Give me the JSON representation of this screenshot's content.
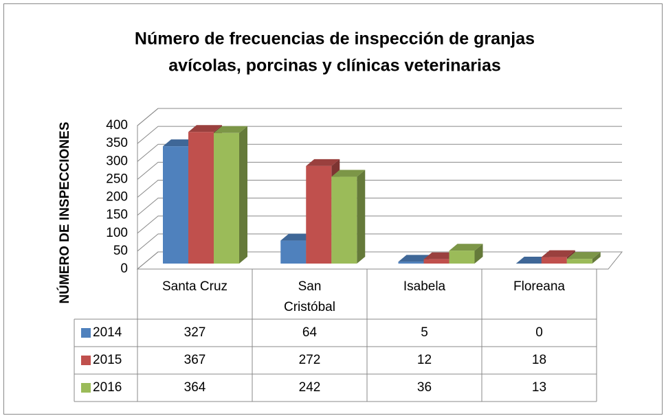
{
  "chart_data": {
    "type": "bar3d",
    "title": "Número de  frecuencias de inspección de granjas avícolas, porcinas y clínicas veterinarias",
    "y_label": "NÚMERO DE INSPECCIONES",
    "categories": [
      "Santa Cruz",
      "San Cristóbal",
      "Isabela",
      "Floreana"
    ],
    "series": [
      {
        "name": "2014",
        "color": "#4f81bd",
        "values": [
          327,
          64,
          5,
          0
        ]
      },
      {
        "name": "2015",
        "color": "#c0504d",
        "values": [
          367,
          272,
          12,
          18
        ]
      },
      {
        "name": "2016",
        "color": "#9bbb59",
        "values": [
          364,
          242,
          36,
          13
        ]
      }
    ],
    "ylim": [
      0,
      400
    ],
    "yticks": [
      0,
      50,
      100,
      150,
      200,
      250,
      300,
      350,
      400
    ],
    "grid": true,
    "data_table": true
  }
}
